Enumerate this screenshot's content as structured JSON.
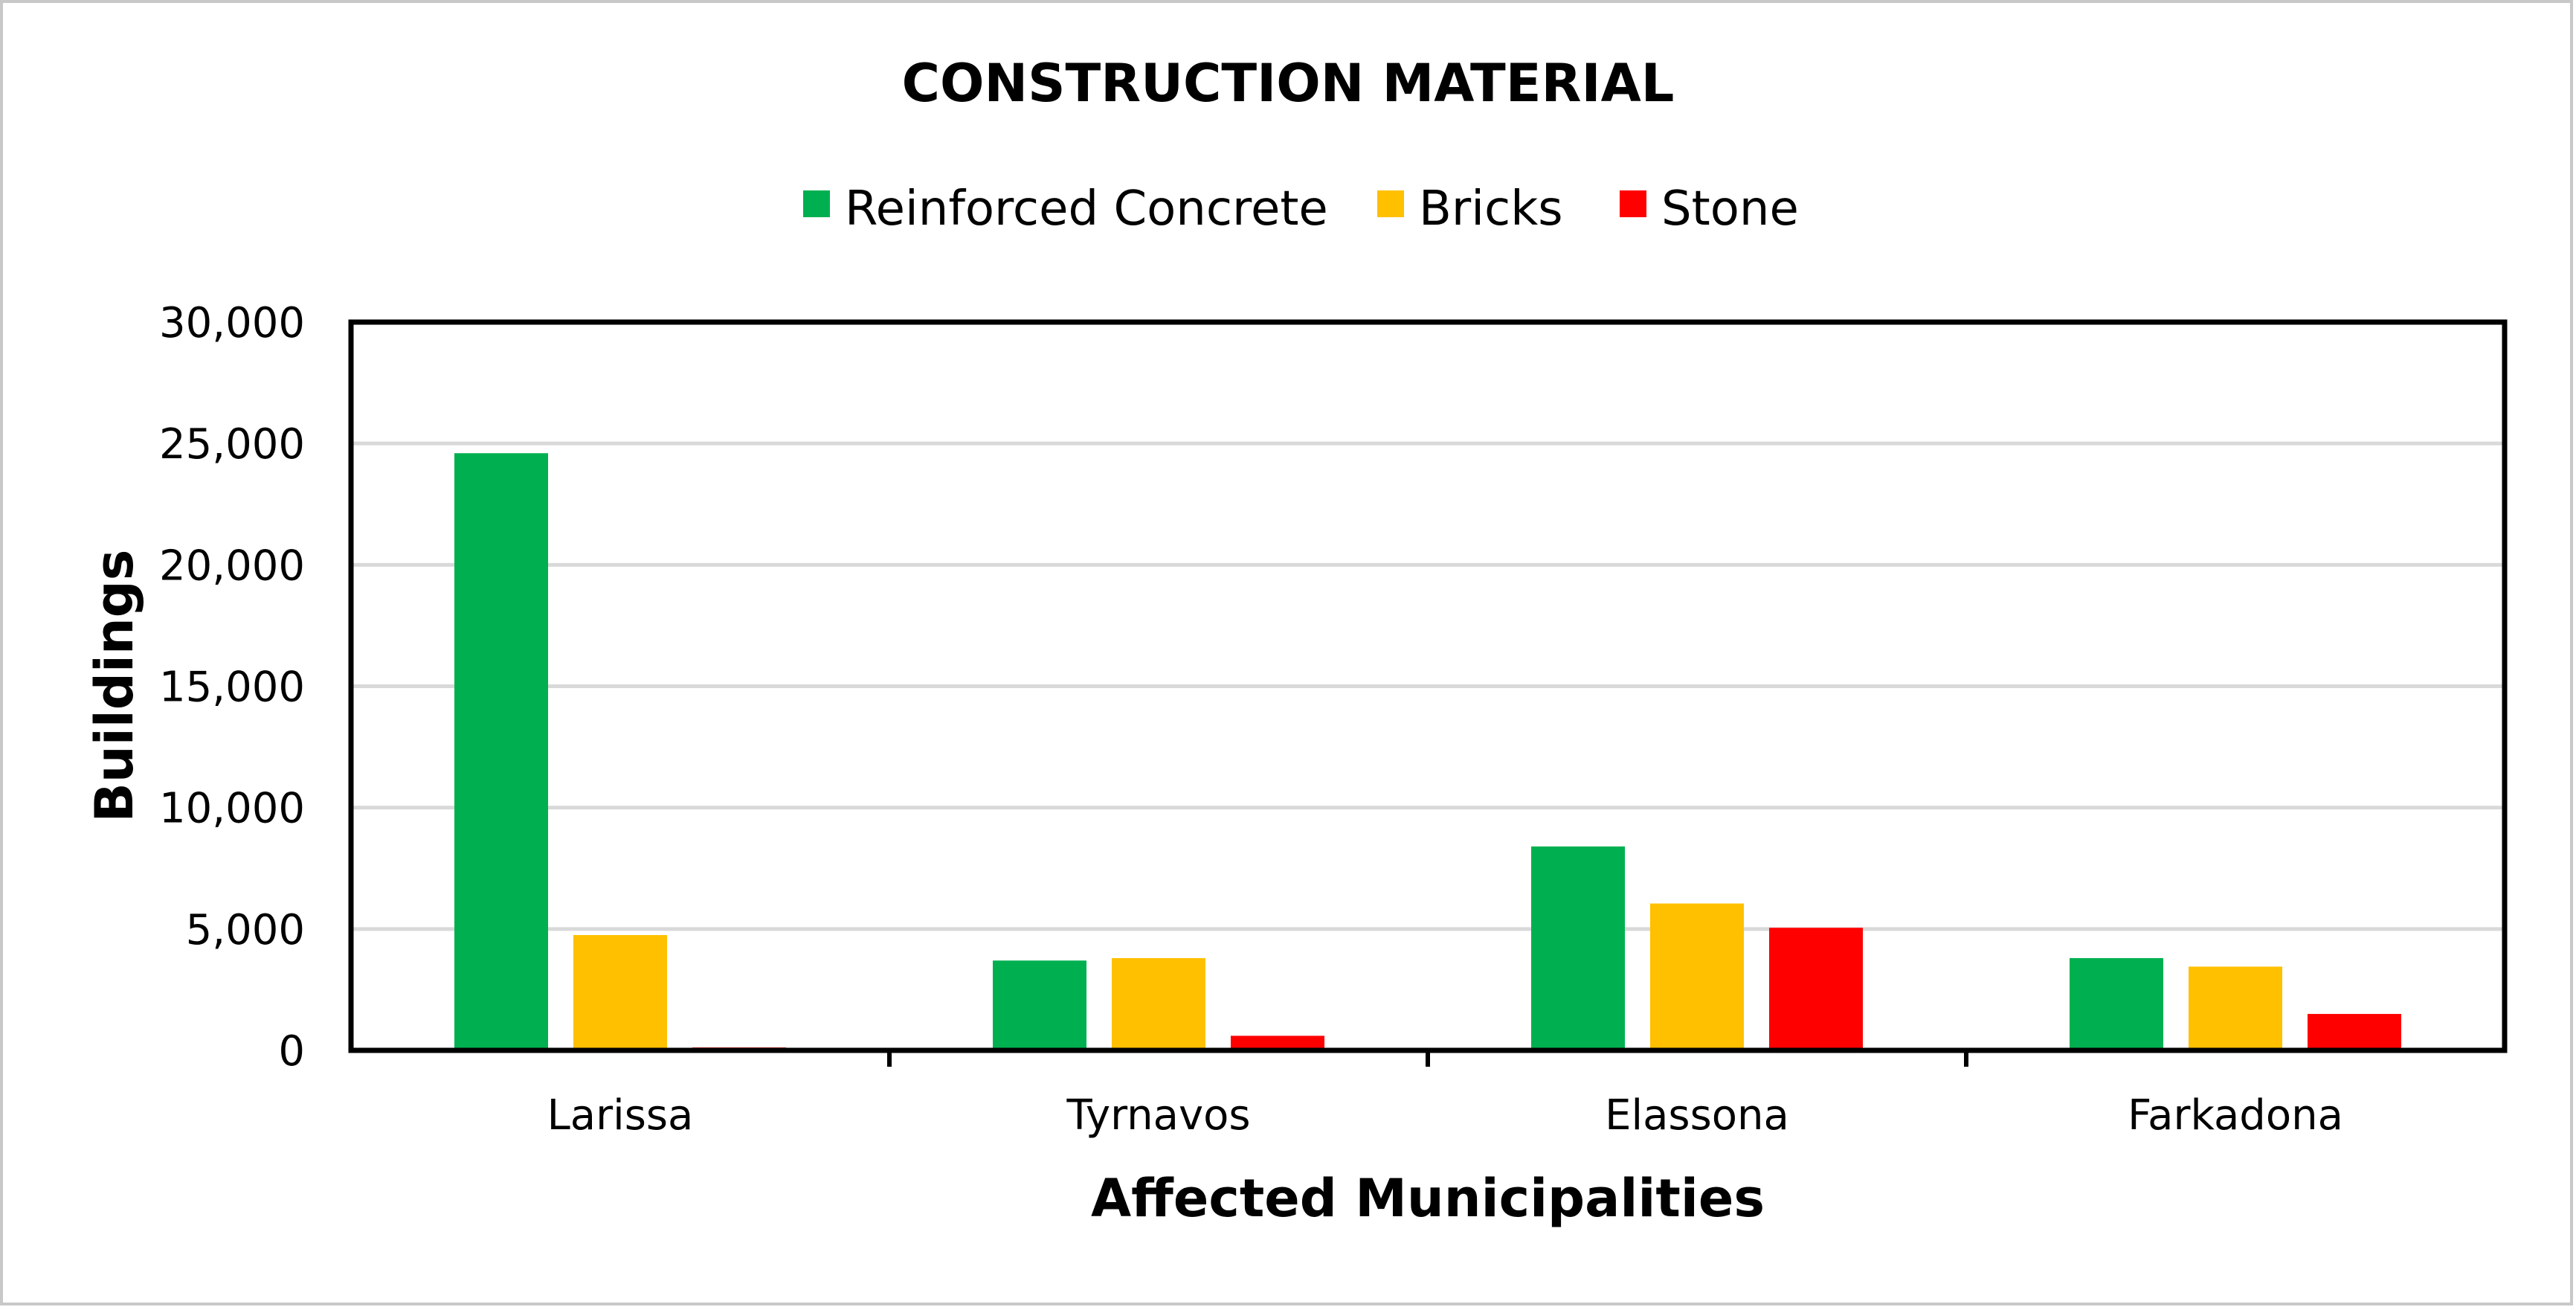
{
  "chart_data": {
    "type": "bar",
    "title": "CONSTRUCTION MATERIAL",
    "xlabel": "Affected Municipalities",
    "ylabel": "Buildings",
    "categories": [
      "Larissa",
      "Tyrnavos",
      "Elassona",
      "Farkadona"
    ],
    "series": [
      {
        "name": "Reinforced Concrete",
        "color": "#00B050",
        "values": [
          24600,
          3700,
          8400,
          3800
        ]
      },
      {
        "name": "Bricks",
        "color": "#FFC000",
        "values": [
          4750,
          3800,
          6050,
          3450
        ]
      },
      {
        "name": "Stone",
        "color": "#FF0000",
        "values": [
          120,
          600,
          5050,
          1500
        ]
      }
    ],
    "ylim": [
      0,
      30000
    ],
    "yticks": [
      0,
      5000,
      10000,
      15000,
      20000,
      25000,
      30000
    ],
    "ytick_labels": [
      "0",
      "5,000",
      "10,000",
      "15,000",
      "20,000",
      "25,000",
      "30,000"
    ],
    "grid": true,
    "legend_position": "top-center"
  }
}
